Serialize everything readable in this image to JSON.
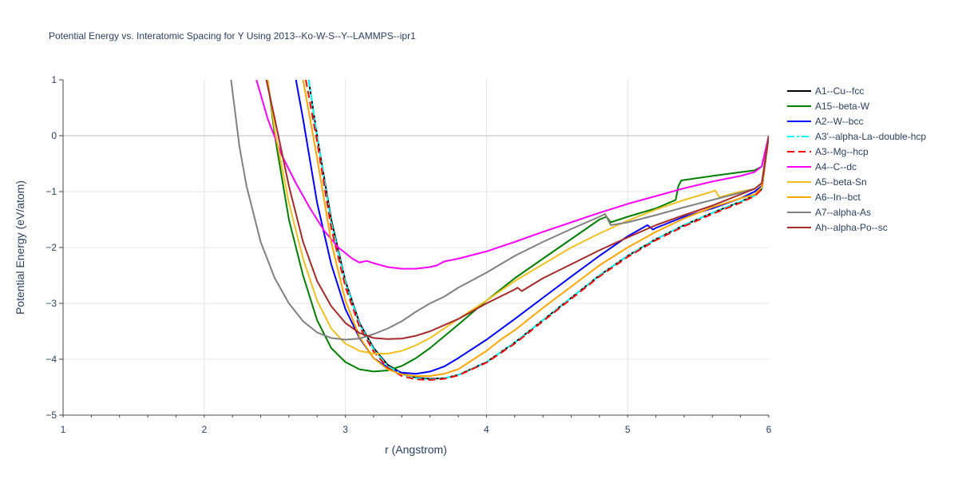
{
  "chart_data": {
    "type": "line",
    "title": "Potential Energy vs. Interatomic Spacing for Y Using 2013--Ko-W-S--Y--LAMMPS--ipr1",
    "xlabel": "r (Angstrom)",
    "ylabel": "Potential Energy (eV/atom)",
    "xlim": [
      1,
      6
    ],
    "ylim": [
      -5,
      1
    ],
    "xticks": [
      1,
      2,
      3,
      4,
      5,
      6
    ],
    "yticks": [
      1,
      0,
      -1,
      -2,
      -3,
      -4,
      -5
    ],
    "ytick_labels": [
      "1",
      "0",
      "−1",
      "−2",
      "−3",
      "−4",
      "−5"
    ],
    "grid": true,
    "legend_position": "right",
    "series": [
      {
        "name": "A1--Cu--fcc",
        "color": "#000000",
        "dash": "solid",
        "x": [
          2.74,
          2.8,
          2.9,
          3.0,
          3.1,
          3.2,
          3.3,
          3.4,
          3.5,
          3.6,
          3.7,
          3.8,
          4.0,
          4.2,
          4.4,
          4.6,
          4.8,
          5.0,
          5.2,
          5.4,
          5.6,
          5.8,
          5.9,
          5.95,
          6.0
        ],
        "y": [
          1.0,
          0.0,
          -1.5,
          -2.6,
          -3.35,
          -3.8,
          -4.1,
          -4.25,
          -4.33,
          -4.35,
          -4.34,
          -4.28,
          -4.05,
          -3.7,
          -3.3,
          -2.9,
          -2.5,
          -2.15,
          -1.85,
          -1.6,
          -1.38,
          -1.18,
          -1.07,
          -0.95,
          0.0
        ]
      },
      {
        "name": "A15--beta-W",
        "color": "#008000",
        "dash": "solid",
        "x": [
          2.45,
          2.5,
          2.6,
          2.7,
          2.8,
          2.9,
          3.0,
          3.1,
          3.2,
          3.3,
          3.4,
          3.5,
          3.6,
          3.8,
          4.0,
          4.2,
          4.4,
          4.6,
          4.8,
          4.85,
          4.88,
          5.0,
          5.2,
          5.34,
          5.36,
          5.38,
          5.6,
          5.9,
          5.95,
          6.0
        ],
        "y": [
          1.0,
          0.0,
          -1.5,
          -2.5,
          -3.3,
          -3.8,
          -4.05,
          -4.18,
          -4.22,
          -4.2,
          -4.12,
          -3.98,
          -3.8,
          -3.38,
          -2.95,
          -2.55,
          -2.2,
          -1.85,
          -1.5,
          -1.45,
          -1.55,
          -1.45,
          -1.3,
          -1.15,
          -0.9,
          -0.8,
          -0.72,
          -0.62,
          -0.55,
          0.0
        ]
      },
      {
        "name": "A2--W--bcc",
        "color": "#0000ff",
        "dash": "solid",
        "x": [
          2.65,
          2.7,
          2.8,
          2.9,
          3.0,
          3.1,
          3.2,
          3.3,
          3.4,
          3.5,
          3.6,
          3.7,
          3.8,
          4.0,
          4.2,
          4.4,
          4.6,
          4.8,
          5.0,
          5.14,
          5.18,
          5.2,
          5.4,
          5.6,
          5.8,
          5.9,
          5.95,
          6.0
        ],
        "y": [
          1.0,
          0.3,
          -1.2,
          -2.3,
          -3.1,
          -3.62,
          -3.98,
          -4.15,
          -4.24,
          -4.26,
          -4.22,
          -4.13,
          -3.98,
          -3.65,
          -3.28,
          -2.9,
          -2.52,
          -2.15,
          -1.8,
          -1.6,
          -1.68,
          -1.65,
          -1.45,
          -1.3,
          -1.12,
          -1.0,
          -0.9,
          0.0
        ]
      },
      {
        "name": "A3'--alpha-La--double-hcp",
        "color": "#00ffff",
        "dash": "dashdot",
        "x": [
          2.74,
          2.8,
          2.9,
          3.0,
          3.1,
          3.2,
          3.3,
          3.4,
          3.5,
          3.6,
          3.7,
          3.8,
          4.0,
          4.2,
          4.4,
          4.6,
          4.8,
          5.0,
          5.2,
          5.4,
          5.6,
          5.8,
          5.9,
          5.95,
          6.0
        ],
        "y": [
          1.0,
          0.0,
          -1.55,
          -2.62,
          -3.37,
          -3.82,
          -4.12,
          -4.27,
          -4.34,
          -4.36,
          -4.34,
          -4.28,
          -4.05,
          -3.7,
          -3.3,
          -2.9,
          -2.5,
          -2.15,
          -1.85,
          -1.6,
          -1.38,
          -1.18,
          -1.07,
          -0.95,
          0.0
        ]
      },
      {
        "name": "A3--Mg--hcp",
        "color": "#ff0000",
        "dash": "dash",
        "x": [
          2.72,
          2.8,
          2.9,
          3.0,
          3.1,
          3.2,
          3.3,
          3.4,
          3.5,
          3.6,
          3.7,
          3.8,
          4.0,
          4.2,
          4.4,
          4.6,
          4.8,
          5.0,
          5.2,
          5.4,
          5.6,
          5.8,
          5.9,
          5.95,
          6.0
        ],
        "y": [
          1.0,
          -0.1,
          -1.65,
          -2.7,
          -3.42,
          -3.86,
          -4.15,
          -4.3,
          -4.36,
          -4.37,
          -4.35,
          -4.29,
          -4.06,
          -3.72,
          -3.32,
          -2.92,
          -2.52,
          -2.17,
          -1.87,
          -1.62,
          -1.4,
          -1.2,
          -1.08,
          -0.96,
          0.0
        ]
      },
      {
        "name": "A4--C--dc",
        "color": "#ff00ff",
        "dash": "solid",
        "x": [
          2.37,
          2.45,
          2.55,
          2.65,
          2.75,
          2.85,
          2.95,
          3.05,
          3.1,
          3.15,
          3.2,
          3.3,
          3.4,
          3.5,
          3.6,
          3.65,
          3.7,
          3.8,
          4.0,
          4.2,
          4.4,
          4.6,
          4.8,
          5.0,
          5.2,
          5.4,
          5.6,
          5.8,
          5.9,
          5.95,
          6.0
        ],
        "y": [
          1.0,
          0.3,
          -0.35,
          -0.85,
          -1.3,
          -1.7,
          -2.0,
          -2.2,
          -2.27,
          -2.24,
          -2.28,
          -2.35,
          -2.38,
          -2.38,
          -2.35,
          -2.32,
          -2.25,
          -2.2,
          -2.07,
          -1.9,
          -1.72,
          -1.55,
          -1.38,
          -1.22,
          -1.08,
          -0.94,
          -0.82,
          -0.72,
          -0.65,
          -0.55,
          0.0
        ]
      },
      {
        "name": "A5--beta-Sn",
        "color": "#f0c020",
        "dash": "solid",
        "x": [
          2.45,
          2.5,
          2.6,
          2.7,
          2.8,
          2.9,
          3.0,
          3.1,
          3.2,
          3.3,
          3.4,
          3.5,
          3.6,
          3.8,
          4.0,
          4.2,
          4.4,
          4.6,
          4.8,
          5.0,
          5.2,
          5.4,
          5.6,
          5.62,
          5.65,
          5.8,
          5.9,
          5.95,
          6.0
        ],
        "y": [
          1.0,
          0.1,
          -1.2,
          -2.2,
          -2.95,
          -3.45,
          -3.72,
          -3.85,
          -3.9,
          -3.9,
          -3.85,
          -3.75,
          -3.62,
          -3.28,
          -2.95,
          -2.6,
          -2.3,
          -2.0,
          -1.75,
          -1.52,
          -1.32,
          -1.15,
          -1.0,
          -0.98,
          -1.1,
          -1.0,
          -0.95,
          -0.85,
          0.0
        ]
      },
      {
        "name": "A6--In--bct",
        "color": "#ffa500",
        "dash": "solid",
        "x": [
          2.7,
          2.8,
          2.9,
          3.0,
          3.1,
          3.2,
          3.3,
          3.4,
          3.5,
          3.6,
          3.7,
          3.8,
          4.0,
          4.1,
          4.2,
          4.4,
          4.6,
          4.8,
          5.0,
          5.2,
          5.4,
          5.6,
          5.8,
          5.9,
          5.95,
          6.0
        ],
        "y": [
          1.0,
          -0.4,
          -1.9,
          -2.95,
          -3.6,
          -3.98,
          -4.18,
          -4.27,
          -4.3,
          -4.3,
          -4.26,
          -4.18,
          -3.85,
          -3.65,
          -3.48,
          -3.08,
          -2.7,
          -2.32,
          -2.0,
          -1.72,
          -1.48,
          -1.28,
          -1.12,
          -1.05,
          -0.92,
          0.0
        ]
      },
      {
        "name": "A7--alpha-As",
        "color": "#808080",
        "dash": "solid",
        "x": [
          2.19,
          2.25,
          2.3,
          2.4,
          2.5,
          2.6,
          2.7,
          2.8,
          2.9,
          3.0,
          3.1,
          3.2,
          3.3,
          3.4,
          3.5,
          3.6,
          3.7,
          3.8,
          4.0,
          4.2,
          4.4,
          4.6,
          4.8,
          4.84,
          4.88,
          5.0,
          5.2,
          5.4,
          5.6,
          5.8,
          5.9,
          5.95,
          6.0
        ],
        "y": [
          1.0,
          -0.2,
          -0.9,
          -1.9,
          -2.55,
          -3.0,
          -3.32,
          -3.52,
          -3.62,
          -3.65,
          -3.63,
          -3.55,
          -3.45,
          -3.32,
          -3.15,
          -3.0,
          -2.88,
          -2.72,
          -2.45,
          -2.15,
          -1.9,
          -1.67,
          -1.45,
          -1.4,
          -1.6,
          -1.55,
          -1.42,
          -1.28,
          -1.15,
          -1.02,
          -0.95,
          -0.85,
          0.0
        ]
      },
      {
        "name": "Ah--alpha-Po--sc",
        "color": "#a52a2a",
        "dash": "solid",
        "x": [
          2.44,
          2.5,
          2.6,
          2.7,
          2.8,
          2.9,
          3.0,
          3.1,
          3.2,
          3.3,
          3.4,
          3.5,
          3.6,
          3.8,
          4.0,
          4.2,
          4.22,
          4.25,
          4.4,
          4.6,
          4.8,
          5.0,
          5.2,
          5.4,
          5.6,
          5.8,
          5.9,
          5.95,
          6.0
        ],
        "y": [
          1.0,
          0.3,
          -0.9,
          -1.9,
          -2.6,
          -3.05,
          -3.35,
          -3.53,
          -3.62,
          -3.64,
          -3.63,
          -3.58,
          -3.5,
          -3.28,
          -3.0,
          -2.75,
          -2.72,
          -2.78,
          -2.55,
          -2.3,
          -2.05,
          -1.82,
          -1.6,
          -1.42,
          -1.25,
          -1.05,
          -0.95,
          -0.85,
          0.0
        ]
      }
    ]
  }
}
